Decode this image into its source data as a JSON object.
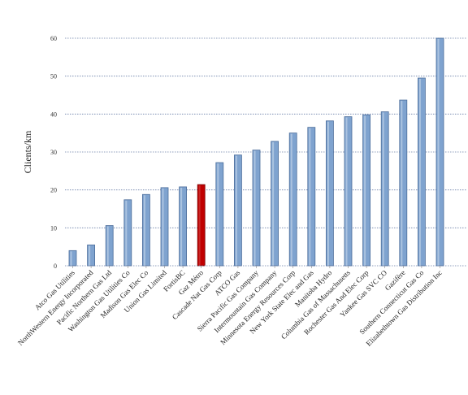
{
  "chart_data": {
    "type": "bar",
    "title": "",
    "xlabel": "",
    "ylabel": "Clients/km",
    "ylim": [
      0,
      60
    ],
    "yticks": [
      0,
      10,
      20,
      30,
      40,
      50,
      60
    ],
    "grid": true,
    "legend": "none",
    "categories": [
      "Atco Gas Utilities",
      "NorthWestern Energy Incorporated",
      "Pacific Northern Gas Ltd",
      "Washington Gas Utilities Co",
      "Madison Gas Elec Co",
      "Union Gas Limited",
      "FortisBC",
      "Gaz Métro",
      "Cascade Nat Gas Corp",
      "ATCO Gas",
      "Sierra Pacific Gas Company",
      "Intermountain Gas Company",
      "Minnesota Energy Resources Corp",
      "New York State Elec and Gas",
      "Manitoba Hydro",
      "Columbia Gas of Massachusetts",
      "Rochester Gas And Elec Corp",
      "Yankee Gas SVC CO",
      "Gazifère",
      "Southern Connecticut Gas Co",
      "Elizabethtown Gas Distribution Inc"
    ],
    "values": [
      4.0,
      5.5,
      10.6,
      17.4,
      18.8,
      20.6,
      20.8,
      21.4,
      27.2,
      29.2,
      30.5,
      32.8,
      35.0,
      36.5,
      38.2,
      39.3,
      39.8,
      40.6,
      43.7,
      49.5,
      60.0
    ],
    "highlight_index": 7,
    "colors": {
      "bar": "#7fa3cf",
      "bar_edge": "#4a6c9a",
      "highlight": "#c00000",
      "highlight_edge": "#7a0000",
      "grid": "#6a7fa8",
      "axis": "#888888"
    }
  }
}
